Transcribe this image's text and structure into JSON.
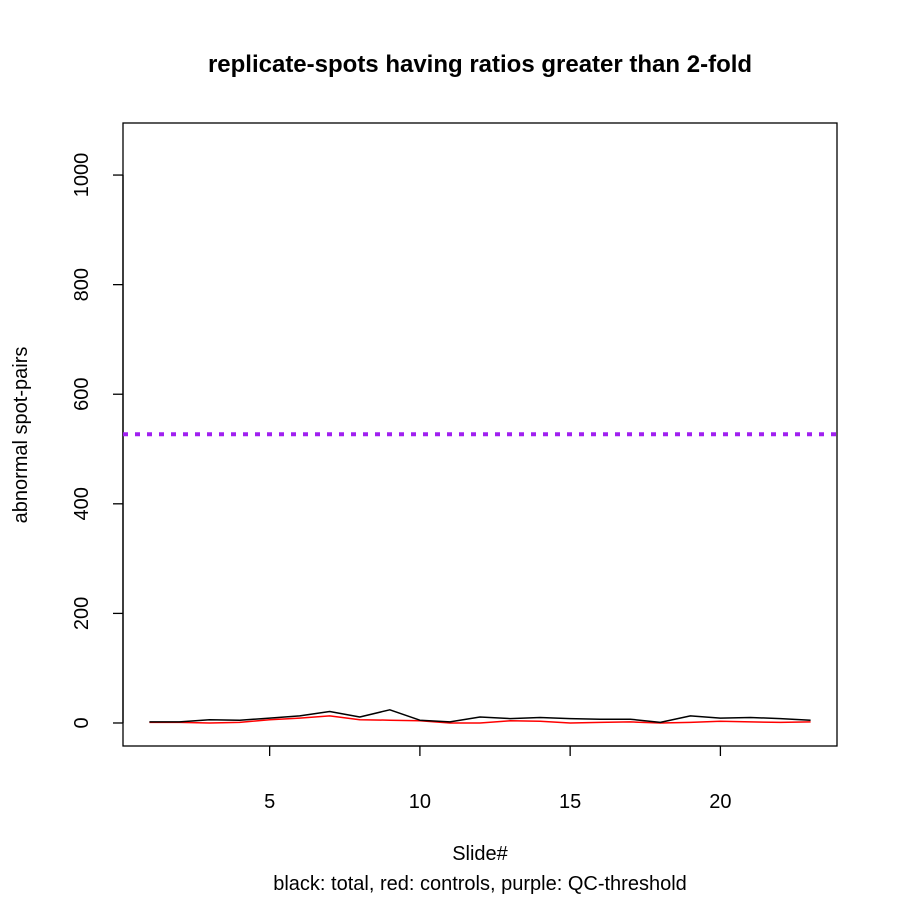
{
  "chart_data": {
    "type": "line",
    "title": "replicate-spots having ratios greater than 2-fold",
    "xlabel": "Slide#",
    "ylabel": "abnormal spot-pairs",
    "subtitle": "black: total, red: controls, purple: QC-threshold",
    "xlim": [
      0.12,
      23.88
    ],
    "ylim": [
      -42,
      1095
    ],
    "xticks": [
      5,
      10,
      15,
      20
    ],
    "yticks": [
      0,
      200,
      400,
      600,
      800,
      1000
    ],
    "x": [
      1,
      2,
      3,
      4,
      5,
      6,
      7,
      8,
      9,
      10,
      11,
      12,
      13,
      14,
      15,
      16,
      17,
      18,
      19,
      20,
      21,
      22,
      23
    ],
    "series": [
      {
        "name": "total",
        "color": "#000000",
        "values": [
          2,
          2,
          6,
          5,
          9,
          13,
          21,
          11,
          24,
          5,
          2,
          11,
          8,
          10,
          8,
          7,
          7,
          1,
          13,
          9,
          10,
          8,
          5
        ]
      },
      {
        "name": "controls",
        "color": "#ff0000",
        "values": [
          1,
          1,
          0,
          1,
          6,
          9,
          13,
          6,
          5,
          4,
          0,
          0,
          4,
          3,
          0,
          1,
          2,
          0,
          1,
          3,
          2,
          1,
          2
        ]
      }
    ],
    "threshold": {
      "name": "QC-threshold",
      "value": 527,
      "color": "#a020f0",
      "style": "dotted"
    },
    "grid": false,
    "legend": "none"
  }
}
